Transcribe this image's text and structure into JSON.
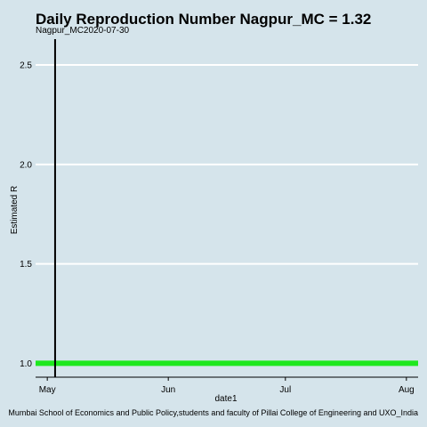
{
  "chart_data": {
    "type": "line",
    "title": "Daily Reproduction Number Nagpur_MC = 1.32",
    "subtitle": "Nagpur_MC2020-07-30",
    "xlabel": "date1",
    "ylabel": "Estimated R",
    "caption": "Mumbai School of Economics and Public Policy,students and faculty of Pillai College of Engineering and UXO_India",
    "x_ticks": [
      {
        "label": "May",
        "date": "2020-05-01"
      },
      {
        "label": "Jun",
        "date": "2020-06-01"
      },
      {
        "label": "Jul",
        "date": "2020-07-01"
      },
      {
        "label": "Aug",
        "date": "2020-08-01"
      }
    ],
    "y_ticks": [
      1.0,
      1.5,
      2.0,
      2.5
    ],
    "y_tick_labels": [
      "1.0",
      "1.5",
      "2.0",
      "2.5"
    ],
    "xlim": [
      "2020-04-28",
      "2020-08-04"
    ],
    "ylim": [
      0.93,
      2.63
    ],
    "grid": true,
    "vertical_marker": {
      "date": "2020-05-03"
    },
    "series": [
      {
        "color": "#1ee81e",
        "x": [
          "2020-04-28",
          "2020-08-04"
        ],
        "values": [
          1.0,
          1.0
        ]
      }
    ]
  }
}
